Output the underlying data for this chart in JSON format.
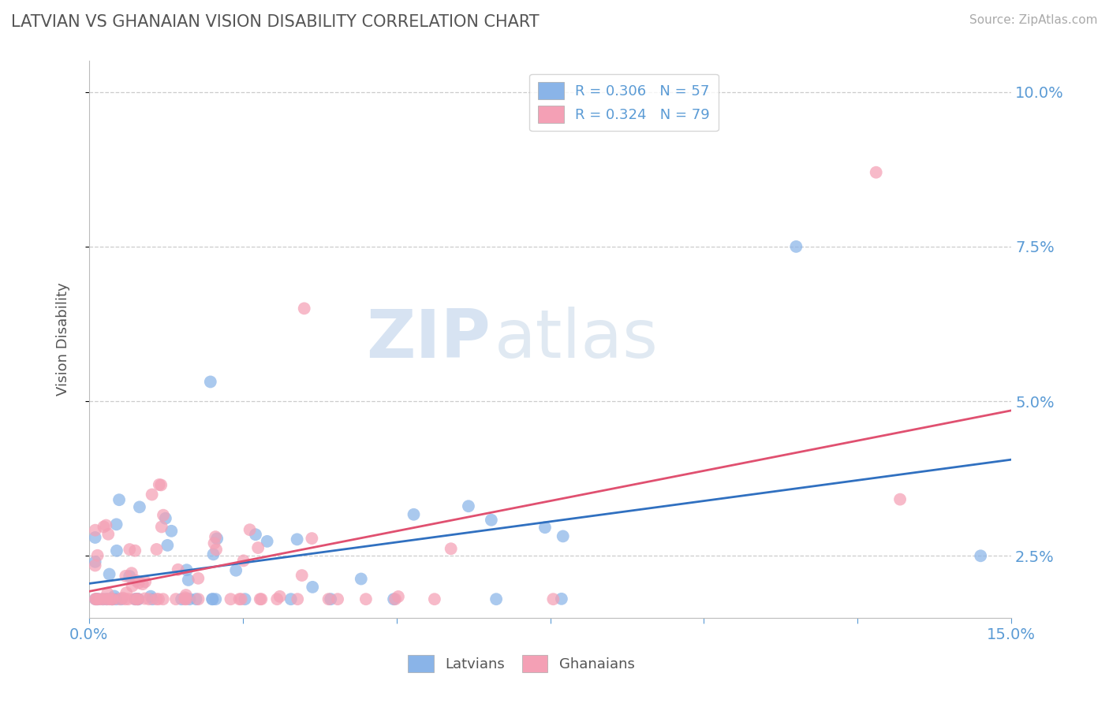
{
  "title": "LATVIAN VS GHANAIAN VISION DISABILITY CORRELATION CHART",
  "source": "Source: ZipAtlas.com",
  "ylabel": "Vision Disability",
  "xlim": [
    0.0,
    0.15
  ],
  "ylim": [
    0.015,
    0.105
  ],
  "latvian_color": "#8ab4e8",
  "ghanaian_color": "#f4a0b5",
  "latvian_R": 0.306,
  "latvian_N": 57,
  "ghanaian_R": 0.324,
  "ghanaian_N": 79,
  "watermark_zip": "ZIP",
  "watermark_atlas": "atlas",
  "background_color": "#ffffff",
  "grid_color": "#cccccc",
  "title_color": "#555555",
  "axis_label_color": "#5b9bd5",
  "latvian_line_color": "#3070c0",
  "ghanaian_line_color": "#e05070",
  "line_intercept": 0.019,
  "line_slope_lv": 0.021,
  "line_slope_gh": 0.022
}
